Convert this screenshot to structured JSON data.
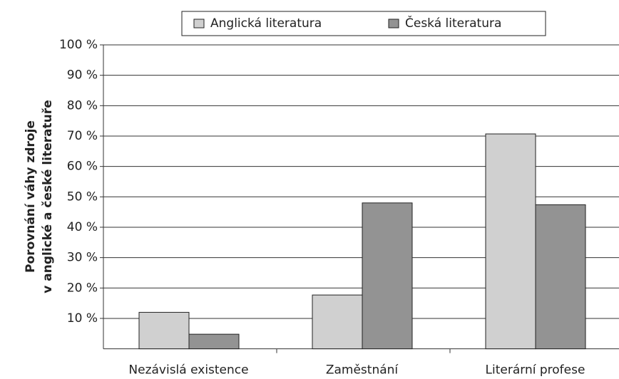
{
  "chart_data": {
    "type": "bar",
    "ylabel": [
      "Porovnání váhy zdroje",
      "v anglické a české literatuře"
    ],
    "categories": [
      "Nezávislá existence",
      "Zaměstnání",
      "Literární profese"
    ],
    "series": [
      {
        "name": "Anglická literatura",
        "color": "#d0d0d0",
        "values": [
          12,
          17.7,
          70.7
        ]
      },
      {
        "name": "Česká literatura",
        "color": "#939393",
        "values": [
          4.8,
          48,
          47.4
        ]
      }
    ],
    "ylim": [
      0,
      100
    ],
    "yticks": [
      {
        "value": 10,
        "label": "10 %"
      },
      {
        "value": 20,
        "label": "20 %"
      },
      {
        "value": 30,
        "label": "30 %"
      },
      {
        "value": 40,
        "label": "40 %"
      },
      {
        "value": 50,
        "label": "50 %"
      },
      {
        "value": 60,
        "label": "60 %"
      },
      {
        "value": 70,
        "label": "70 %"
      },
      {
        "value": 80,
        "label": "80 %"
      },
      {
        "value": 90,
        "label": "90 %"
      },
      {
        "value": 100,
        "label": "100 %"
      }
    ],
    "grid": true,
    "legend": "top"
  }
}
